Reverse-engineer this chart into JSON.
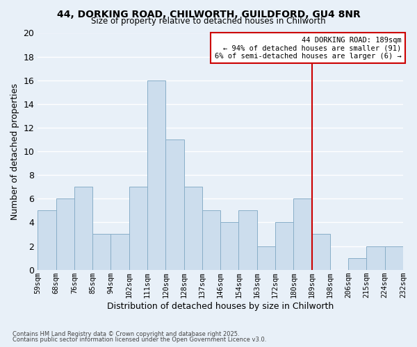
{
  "title_line1": "44, DORKING ROAD, CHILWORTH, GUILDFORD, GU4 8NR",
  "title_line2": "Size of property relative to detached houses in Chilworth",
  "xlabel": "Distribution of detached houses by size in Chilworth",
  "ylabel": "Number of detached properties",
  "tick_labels": [
    "59sqm",
    "68sqm",
    "76sqm",
    "85sqm",
    "94sqm",
    "102sqm",
    "111sqm",
    "120sqm",
    "128sqm",
    "137sqm",
    "146sqm",
    "154sqm",
    "163sqm",
    "172sqm",
    "180sqm",
    "189sqm",
    "198sqm",
    "206sqm",
    "215sqm",
    "224sqm",
    "232sqm"
  ],
  "bar_heights": [
    5,
    6,
    7,
    3,
    3,
    7,
    16,
    11,
    7,
    5,
    4,
    5,
    2,
    4,
    6,
    3,
    0,
    1,
    2,
    2
  ],
  "bar_color": "#ccdded",
  "bar_edgecolor": "#88aec8",
  "bg_color": "#e8f0f8",
  "grid_color": "#ffffff",
  "vline_bin": 15,
  "vline_color": "#cc0000",
  "ylim": [
    0,
    20
  ],
  "annotation_title": "44 DORKING ROAD: 189sqm",
  "annotation_line1": "← 94% of detached houses are smaller (91)",
  "annotation_line2": "6% of semi-detached houses are larger (6) →",
  "annotation_box_color": "#ffffff",
  "annotation_box_edgecolor": "#cc0000",
  "footnote1": "Contains HM Land Registry data © Crown copyright and database right 2025.",
  "footnote2": "Contains public sector information licensed under the Open Government Licence v3.0."
}
